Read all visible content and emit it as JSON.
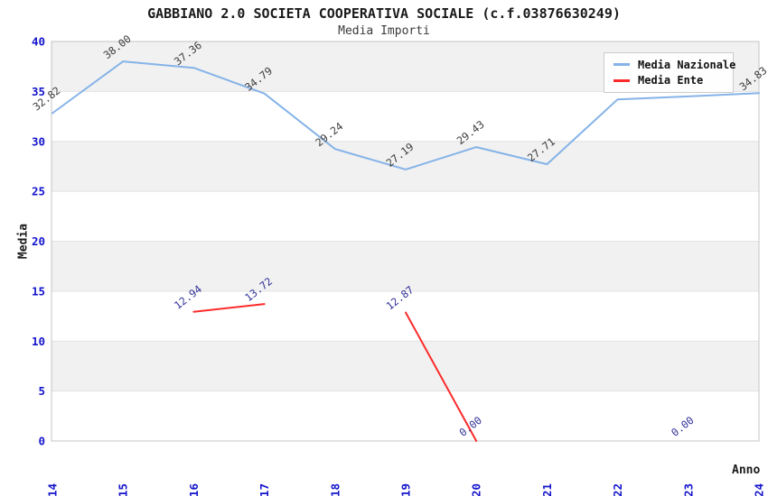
{
  "header": {
    "title": "GABBIANO 2.0 SOCIETA COOPERATIVA SOCIALE (c.f.03876630249)",
    "subtitle": "Media Importi"
  },
  "axes": {
    "y_label": "Media",
    "x_label": "Anno"
  },
  "legend": {
    "items": [
      {
        "label": "Media Nazionale",
        "color": "#85b3e8"
      },
      {
        "label": "Media Ente",
        "color": "#fb2b2b"
      }
    ]
  },
  "colors": {
    "tick_label": "#1414cc",
    "band_gray": "#f1f1f1",
    "gridline": "#e2e2e2",
    "plot_border": "#c4c4c4",
    "national_line": "#85b3e8",
    "ente_line": "#fb2b2b",
    "national_value_label": "#3c3c3c",
    "ente_value_label": "#333399"
  },
  "chart_data": {
    "type": "line",
    "title": "GABBIANO 2.0 SOCIETA COOPERATIVA SOCIALE (c.f.03876630249)",
    "subtitle": "Media Importi",
    "xlabel": "Anno",
    "ylabel": "Media",
    "categories": [
      "2014",
      "2015",
      "2016",
      "2017",
      "2018",
      "2019",
      "2020",
      "2021",
      "2022",
      "2023",
      "2024"
    ],
    "ylim": [
      0,
      40
    ],
    "ytick_step": 5,
    "grid": "horizontal-bands-alternating",
    "legend_position": "top-right-inside",
    "series": [
      {
        "name": "Media Nazionale",
        "color": "#85b3e8",
        "values": [
          32.82,
          38.0,
          37.36,
          34.79,
          29.24,
          27.19,
          29.43,
          27.71,
          34.2,
          34.5,
          34.83
        ],
        "labels": [
          "32.82",
          "38.00",
          "37.36",
          "34.79",
          "29.24",
          "27.19",
          "29.43",
          "27.71",
          null,
          null,
          "34.83"
        ],
        "label_color": "#3c3c3c",
        "note": "labels for 2022 and 2023 are hidden behind the legend box"
      },
      {
        "name": "Media Ente",
        "color": "#fb2b2b",
        "values": [
          null,
          null,
          12.94,
          13.72,
          null,
          12.87,
          0.0,
          null,
          null,
          0.0,
          null
        ],
        "labels": [
          null,
          null,
          "12.94",
          "13.72",
          null,
          "12.87",
          "0.00",
          null,
          null,
          "0.00",
          null
        ],
        "label_color": "#333399"
      }
    ]
  }
}
